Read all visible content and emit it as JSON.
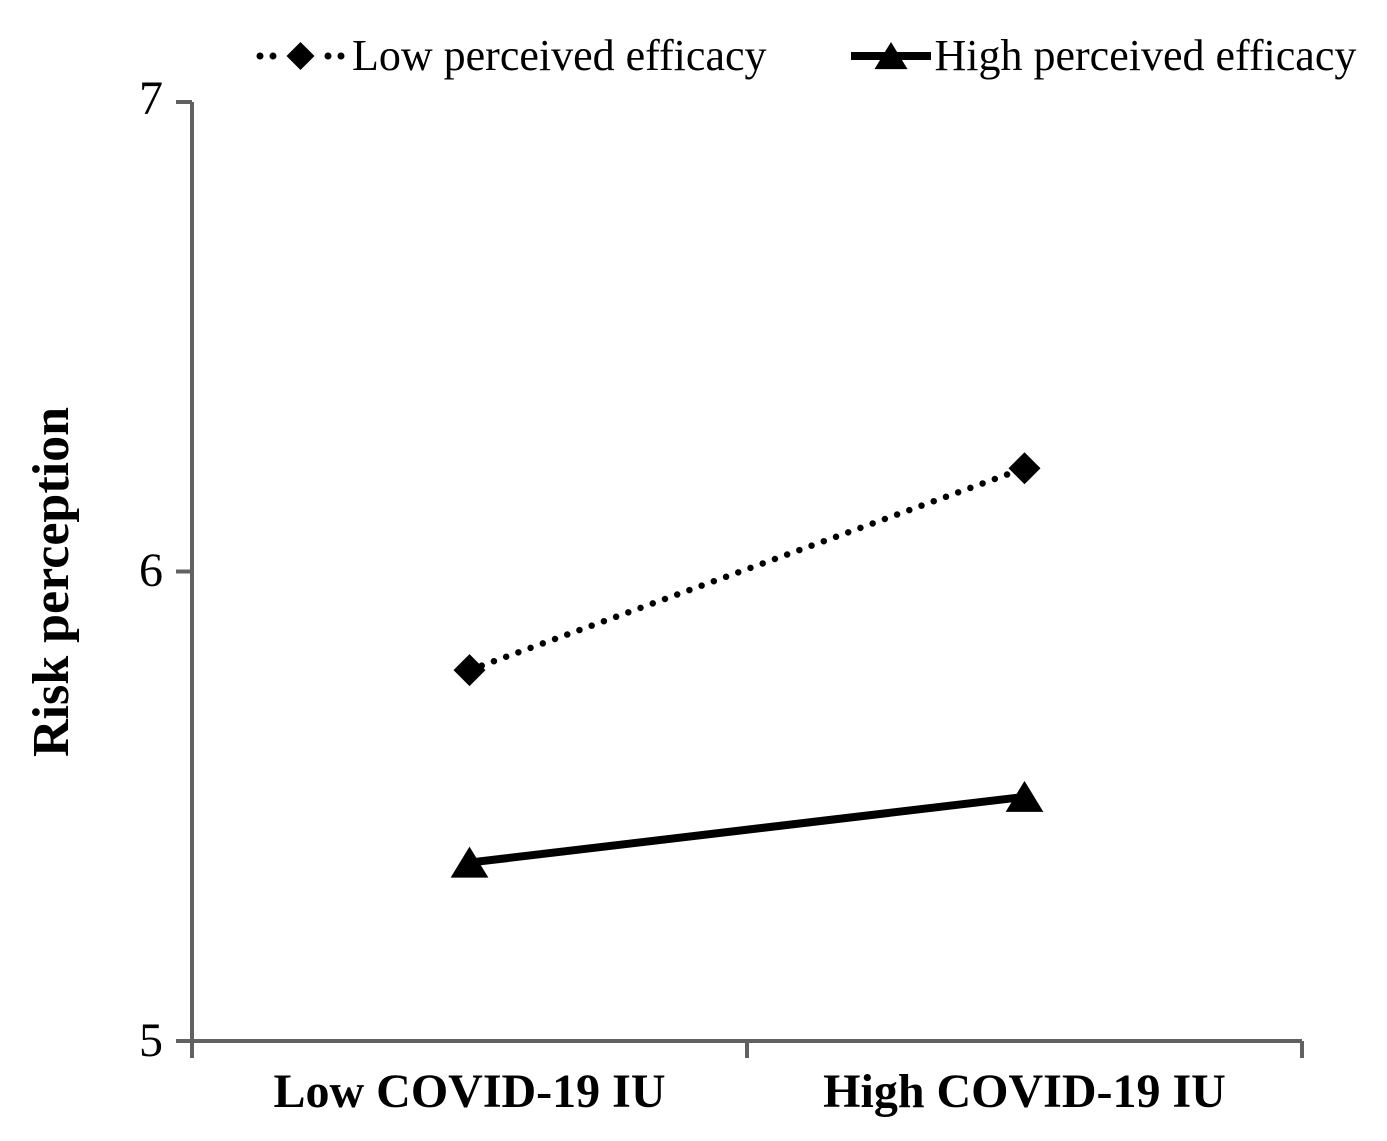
{
  "page": {
    "background": "#ffffff"
  },
  "chart_data": {
    "type": "line",
    "title": "",
    "categories": [
      "Low COVID-19 IU",
      "High COVID-19 IU"
    ],
    "series": [
      {
        "name": "Low perceived efficacy",
        "marker": "diamond",
        "line_style": "dotted",
        "color": "#000000",
        "values": [
          5.79,
          6.22
        ]
      },
      {
        "name": "High perceived efficacy",
        "marker": "triangle",
        "line_style": "solid",
        "color": "#000000",
        "values": [
          5.38,
          5.52
        ]
      }
    ],
    "xlabel": "",
    "ylabel": "Risk perception",
    "ylim": [
      5,
      7
    ],
    "yticks": [
      7,
      6,
      5
    ],
    "grid": false,
    "legend_position": "top",
    "axis_color": "#616161",
    "text_color": "#000000"
  }
}
